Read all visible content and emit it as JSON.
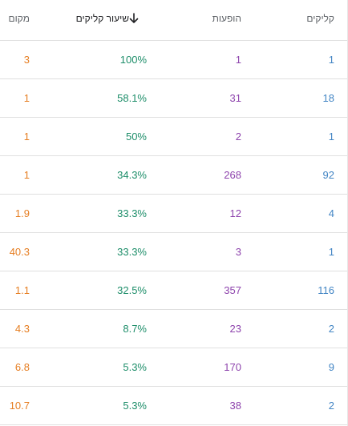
{
  "header": {
    "clicks": "קליקים",
    "impressions": "הופעות",
    "ctr": "שיעור קליקים",
    "position": "מקום"
  },
  "sort": {
    "icon": "arrow-down-icon",
    "column": "ctr"
  },
  "colors": {
    "clicks": "#4285c4",
    "impressions": "#8e44ad",
    "ctr": "#1e8e6a",
    "position": "#e67e22"
  },
  "rows": [
    {
      "clicks": "1",
      "impressions": "1",
      "ctr": "100%",
      "position": "3"
    },
    {
      "clicks": "18",
      "impressions": "31",
      "ctr": "58.1%",
      "position": "1"
    },
    {
      "clicks": "1",
      "impressions": "2",
      "ctr": "50%",
      "position": "1"
    },
    {
      "clicks": "92",
      "impressions": "268",
      "ctr": "34.3%",
      "position": "1"
    },
    {
      "clicks": "4",
      "impressions": "12",
      "ctr": "33.3%",
      "position": "1.9"
    },
    {
      "clicks": "1",
      "impressions": "3",
      "ctr": "33.3%",
      "position": "40.3"
    },
    {
      "clicks": "116",
      "impressions": "357",
      "ctr": "32.5%",
      "position": "1.1"
    },
    {
      "clicks": "2",
      "impressions": "23",
      "ctr": "8.7%",
      "position": "4.3"
    },
    {
      "clicks": "9",
      "impressions": "170",
      "ctr": "5.3%",
      "position": "6.8"
    },
    {
      "clicks": "2",
      "impressions": "38",
      "ctr": "5.3%",
      "position": "10.7"
    }
  ]
}
